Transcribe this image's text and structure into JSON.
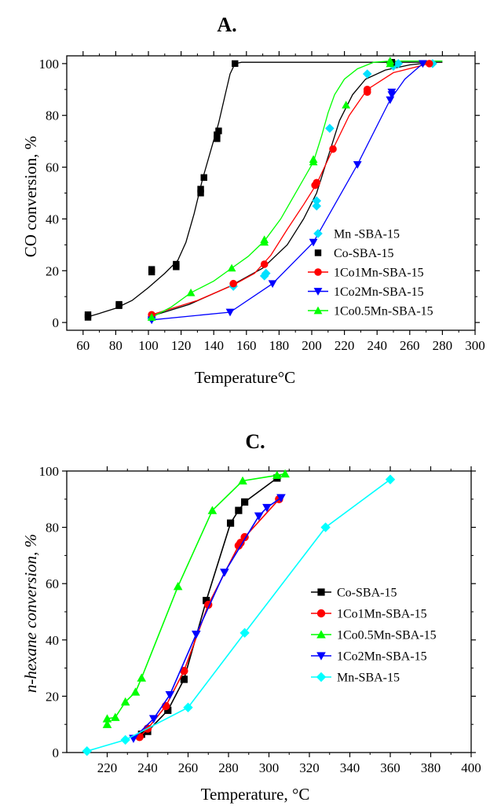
{
  "chart_data": [
    {
      "type": "scatter",
      "panel_label": "A.",
      "xlabel": "Temperature°C",
      "ylabel": "CO conversion, %",
      "xlim": [
        50,
        300
      ],
      "ylim": [
        -3,
        103
      ],
      "xticks": [
        60,
        80,
        100,
        120,
        140,
        160,
        180,
        200,
        220,
        240,
        260,
        280,
        300
      ],
      "yticks": [
        0,
        20,
        40,
        60,
        80,
        100
      ],
      "legend_position": "bottom-right",
      "series": [
        {
          "name": "Mn -SBA-15",
          "color": "#00e0ff",
          "marker": "diamond",
          "line": false,
          "points": [
            [
              102,
              1.5
            ],
            [
              152,
              14
            ],
            [
              171,
              18
            ],
            [
              172,
              19
            ],
            [
              203,
              45
            ],
            [
              203,
              47
            ],
            [
              211,
              75
            ],
            [
              234,
              96
            ],
            [
              250,
              99
            ],
            [
              253,
              100
            ],
            [
              274,
              100
            ]
          ]
        },
        {
          "name": "Co-SBA-15",
          "color": "#000000",
          "marker": "square",
          "line": false,
          "points": [
            [
              63,
              2
            ],
            [
              63,
              3
            ],
            [
              82,
              6.5
            ],
            [
              82,
              7
            ],
            [
              102,
              19.5
            ],
            [
              102,
              20.5
            ],
            [
              117,
              21.5
            ],
            [
              117,
              22.5
            ],
            [
              132,
              50
            ],
            [
              132,
              51.5
            ],
            [
              134,
              56
            ],
            [
              142,
              71
            ],
            [
              142,
              72.5
            ],
            [
              143,
              74
            ],
            [
              153,
              100
            ],
            [
              249,
              100.5
            ]
          ]
        },
        {
          "name": "1Co1Mn-SBA-15",
          "color": "#ff0000",
          "marker": "circle",
          "line": true,
          "points": [
            [
              102,
              3
            ],
            [
              152,
              15
            ],
            [
              171,
              22.5
            ],
            [
              202,
              53
            ],
            [
              203,
              54
            ],
            [
              213,
              67
            ],
            [
              234,
              89
            ],
            [
              234,
              90
            ],
            [
              272,
              100
            ]
          ]
        },
        {
          "name": "1Co2Mn-SBA-15",
          "color": "#0000ff",
          "marker": "triangle-down",
          "line": true,
          "points": [
            [
              102,
              1
            ],
            [
              150,
              4
            ],
            [
              176,
              15
            ],
            [
              201,
              31
            ],
            [
              228,
              61
            ],
            [
              248,
              86
            ],
            [
              249,
              88
            ],
            [
              249,
              89
            ],
            [
              268,
              100
            ]
          ]
        },
        {
          "name": "1Co0.5Mn-SBA-15",
          "color": "#00ff00",
          "marker": "triangle-up",
          "line": true,
          "points": [
            [
              102,
              2
            ],
            [
              126,
              11.5
            ],
            [
              151,
              21
            ],
            [
              171,
              31
            ],
            [
              171,
              32
            ],
            [
              201,
              62
            ],
            [
              201,
              63
            ],
            [
              221,
              84
            ],
            [
              248,
              100
            ],
            [
              248,
              101
            ]
          ]
        }
      ],
      "fits": [
        {
          "series": "Co-SBA-15",
          "color": "#000000",
          "points": [
            [
              62,
              2
            ],
            [
              70,
              3.5
            ],
            [
              80,
              5.5
            ],
            [
              90,
              8.5
            ],
            [
              100,
              13.5
            ],
            [
              110,
              19
            ],
            [
              118,
              24
            ],
            [
              123,
              31
            ],
            [
              128,
              42
            ],
            [
              133,
              55
            ],
            [
              138,
              66
            ],
            [
              143,
              77
            ],
            [
              147,
              88
            ],
            [
              150,
              96
            ],
            [
              153,
              100
            ],
            [
              157,
              100.5
            ],
            [
              160,
              100.5
            ],
            [
              200,
              100.5
            ],
            [
              250,
              100.5
            ],
            [
              280,
              100.5
            ]
          ]
        },
        {
          "series": "Mn -SBA-15",
          "color": "#000000",
          "points": [
            [
              102,
              2.5
            ],
            [
              125,
              7
            ],
            [
              150,
              14
            ],
            [
              170,
              21
            ],
            [
              185,
              30
            ],
            [
              195,
              40
            ],
            [
              203,
              50
            ],
            [
              210,
              64
            ],
            [
              217,
              78
            ],
            [
              225,
              88
            ],
            [
              233,
              94
            ],
            [
              245,
              97.5
            ],
            [
              260,
              99.5
            ],
            [
              275,
              100.5
            ]
          ]
        },
        {
          "series": "1Co1Mn-SBA-15",
          "color": "#ff0000",
          "points": [
            [
              102,
              3
            ],
            [
              130,
              8.5
            ],
            [
              152,
              14.5
            ],
            [
              165,
              19
            ],
            [
              175,
              26
            ],
            [
              185,
              36
            ],
            [
              195,
              45.5
            ],
            [
              203,
              53.5
            ],
            [
              213,
              67
            ],
            [
              223,
              80
            ],
            [
              234,
              90
            ],
            [
              250,
              96.5
            ],
            [
              272,
              100
            ]
          ]
        },
        {
          "series": "1Co2Mn-SBA-15",
          "color": "#0000ff",
          "points": [
            [
              102,
              1
            ],
            [
              150,
              4
            ],
            [
              176,
              15
            ],
            [
              201,
              31
            ],
            [
              228,
              61
            ],
            [
              248,
              86
            ],
            [
              257,
              94
            ],
            [
              268,
              100
            ]
          ]
        },
        {
          "series": "1Co0.5Mn-SBA-15",
          "color": "#00ff00",
          "points": [
            [
              102,
              2
            ],
            [
              114,
              6
            ],
            [
              126,
              11.5
            ],
            [
              140,
              16
            ],
            [
              151,
              21
            ],
            [
              161,
              25.5
            ],
            [
              171,
              31.5
            ],
            [
              181,
              40
            ],
            [
              191,
              51
            ],
            [
              201,
              62
            ],
            [
              206,
              72
            ],
            [
              210,
              81
            ],
            [
              214,
              88
            ],
            [
              220,
              94
            ],
            [
              228,
              98
            ],
            [
              238,
              100.5
            ],
            [
              248,
              101
            ],
            [
              258,
              101
            ],
            [
              270,
              101
            ],
            [
              280,
              101
            ]
          ]
        }
      ]
    },
    {
      "type": "line",
      "panel_label": "C.",
      "xlabel": "Temperature, °C",
      "ylabel": "n-hexane conversion, %",
      "xlim": [
        200,
        400
      ],
      "ylim": [
        0,
        100
      ],
      "xticks": [
        220,
        240,
        260,
        280,
        300,
        320,
        340,
        360,
        380,
        400
      ],
      "yticks": [
        0,
        20,
        40,
        60,
        80,
        100
      ],
      "legend_position": "middle-right",
      "series": [
        {
          "name": "Co-SBA-15",
          "color": "#000000",
          "marker": "square",
          "points": [
            [
              237,
              6.5
            ],
            [
              240,
              7.5
            ],
            [
              250,
              15
            ],
            [
              258,
              26
            ],
            [
              269,
              54
            ],
            [
              281,
              81.5
            ],
            [
              285,
              86
            ],
            [
              288,
              89
            ],
            [
              304,
              97.5
            ]
          ]
        },
        {
          "name": "1Co1Mn-SBA-15",
          "color": "#ff0000",
          "marker": "circle",
          "points": [
            [
              236,
              5.5
            ],
            [
              240,
              8.5
            ],
            [
              249,
              16.5
            ],
            [
              258,
              29
            ],
            [
              270,
              52.5
            ],
            [
              285,
              73.5
            ],
            [
              286,
              74.5
            ],
            [
              288,
              76.5
            ],
            [
              305,
              90
            ]
          ]
        },
        {
          "name": "1Co0.5Mn-SBA-15",
          "color": "#00ff00",
          "marker": "triangle-up",
          "points": [
            [
              220,
              10
            ],
            [
              220,
              12
            ],
            [
              224,
              12.5
            ],
            [
              229,
              18
            ],
            [
              234,
              21.5
            ],
            [
              237,
              26.5
            ],
            [
              255,
              59
            ],
            [
              272,
              86
            ],
            [
              287,
              96.5
            ],
            [
              304,
              98.5
            ],
            [
              308,
              99
            ]
          ]
        },
        {
          "name": "1Co2Mn-SBA-15",
          "color": "#0000ff",
          "marker": "triangle-down",
          "points": [
            [
              233,
              5
            ],
            [
              243,
              12
            ],
            [
              251,
              20.5
            ],
            [
              264,
              42
            ],
            [
              278,
              64
            ],
            [
              295,
              84
            ],
            [
              299,
              87
            ],
            [
              306,
              90.5
            ]
          ]
        },
        {
          "name": "Mn-SBA-15",
          "color": "#00ffff",
          "marker": "diamond",
          "points": [
            [
              210,
              0.5
            ],
            [
              229,
              4.5
            ],
            [
              260,
              16
            ],
            [
              288,
              42.5
            ],
            [
              328,
              80
            ],
            [
              360,
              97
            ]
          ]
        }
      ]
    }
  ]
}
